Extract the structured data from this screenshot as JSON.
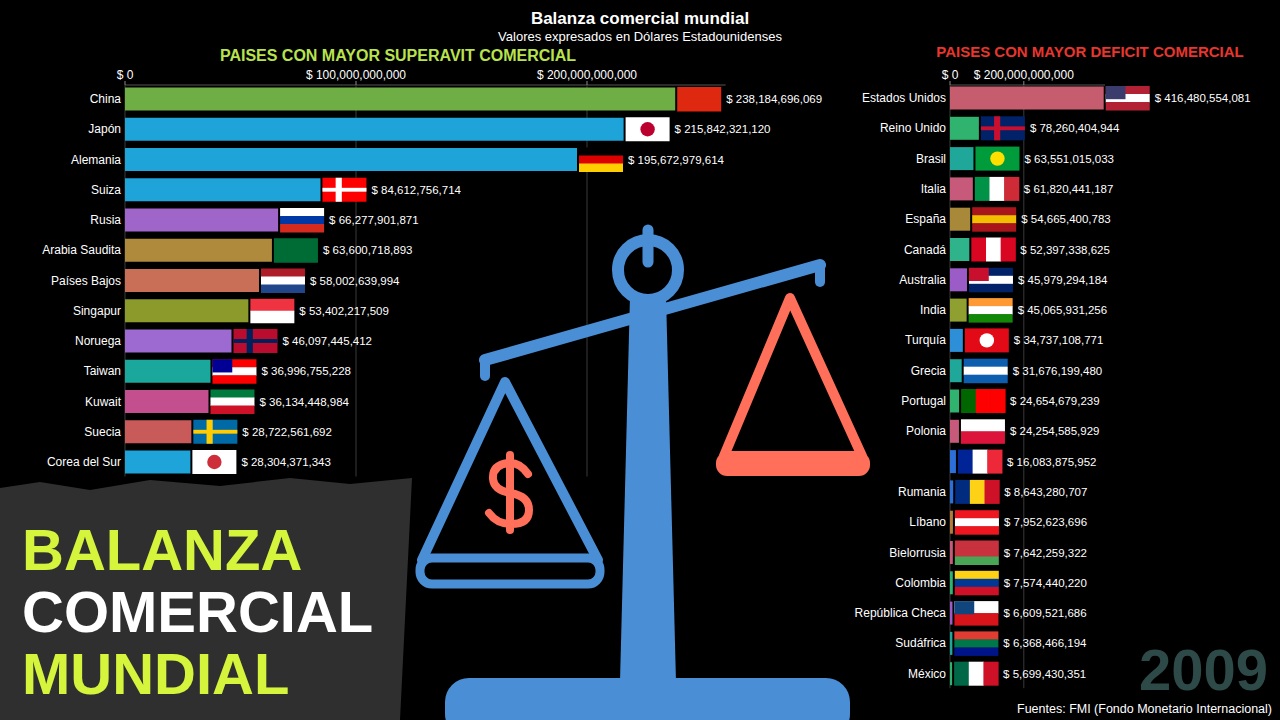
{
  "header": {
    "title": "Balanza comercial mundial",
    "subtitle": "Valores expresados en Dólares Estadounidenses",
    "banner": [
      "BALANZA",
      "COMERCIAL",
      "MUNDIAL"
    ],
    "year": "2009",
    "source": "Fuentes: FMI (Fondo Monetario Internacional)"
  },
  "chart_data": [
    {
      "type": "bar",
      "title": "PAISES CON MAYOR SUPERAVIT COMERCIAL",
      "orientation": "horizontal",
      "grid": true,
      "data_labels": true,
      "categories": [
        "China",
        "Japón",
        "Alemania",
        "Suiza",
        "Rusia",
        "Arabia Saudita",
        "Países Bajos",
        "Singapur",
        "Noruega",
        "Taiwan",
        "Kuwait",
        "Suecia",
        "Corea del Sur"
      ],
      "values": [
        238184696069,
        215842321120,
        195672979614,
        84612756714,
        66277901871,
        63600718893,
        58002639994,
        53402217509,
        46097445412,
        36996755228,
        36134448984,
        28722561692,
        28304371343
      ],
      "value_labels": [
        "$ 238,184,696,069",
        "$ 215,842,321,120",
        "$ 195,672,979,614",
        "$ 84,612,756,714",
        "$ 66,277,901,871",
        "$ 63,600,718,893",
        "$ 58,002,639,994",
        "$ 53,402,217,509",
        "$ 46,097,445,412",
        "$ 36,996,755,228",
        "$ 36,134,448,984",
        "$ 28,722,561,692",
        "$ 28,304,371,343"
      ],
      "colors": [
        "#6fae45",
        "#1ea4d8",
        "#1ea4d8",
        "#1ea4d8",
        "#a065c9",
        "#b08a3c",
        "#c96f58",
        "#8c9a2c",
        "#9c6ad0",
        "#19a89b",
        "#c44f8f",
        "#c95a5a",
        "#1ea4d8"
      ],
      "xlim": [
        0,
        260000000000
      ],
      "xticks": [
        {
          "value": 0,
          "label": "$ 0"
        },
        {
          "value": 100000000000,
          "label": "$ 100,000,000,000"
        },
        {
          "value": 200000000000,
          "label": "$ 200,000,000,000"
        }
      ]
    },
    {
      "type": "bar",
      "title": "PAISES CON MAYOR DEFICIT COMERCIAL",
      "orientation": "horizontal",
      "grid": true,
      "data_labels": true,
      "categories": [
        "Estados Unidos",
        "Reino Unido",
        "Brasil",
        "Italia",
        "España",
        "Canadá",
        "Australia",
        "India",
        "Turquía",
        "Grecia",
        "Portugal",
        "Polonia",
        null,
        "Rumania",
        "Líbano",
        "Bielorrusia",
        "Colombia",
        "República Checa",
        "Sudáfrica",
        "México"
      ],
      "values": [
        416480554081,
        78260404944,
        63551015033,
        61820441187,
        54665400783,
        52397338625,
        45979294184,
        45065931256,
        34737108771,
        31676199480,
        24654679239,
        24254585929,
        16083875952,
        8643280707,
        7952623696,
        7642259322,
        7574440220,
        6609521686,
        6368466194,
        5699430351
      ],
      "value_labels": [
        "$ 416,480,554,081",
        "$ 78,260,404,944",
        "$ 63,551,015,033",
        "$ 61,820,441,187",
        "$ 54,665,400,783",
        "$ 52,397,338,625",
        "$ 45,979,294,184",
        "$ 45,065,931,256",
        "$ 34,737,108,771",
        "$ 31,676,199,480",
        "$ 24,654,679,239",
        "$ 24,254,585,929",
        "$ 16,083,875,952",
        "$ 8,643,280,707",
        "$ 7,952,623,696",
        "$ 7,642,259,322",
        "$ 7,574,440,220",
        "$ 6,609,521,686",
        "$ 6,368,466,194",
        "$ 5,699,430,351"
      ],
      "colors": [
        "#c65d6e",
        "#2fb36e",
        "#1fa89a",
        "#c75a7a",
        "#a8893a",
        "#2fb38a",
        "#9c5cc7",
        "#8fa030",
        "#2c8fd8",
        "#1fa89a",
        "#2fb36e",
        "#c75a7a",
        "#2c6fd8",
        "#2c6fd8",
        "#b57a3a",
        "#c75a7a",
        "#2fb36e",
        "#9c5cc7",
        "#1fa89a",
        "#2fb36e"
      ],
      "xlim": [
        0,
        420000000000
      ],
      "xticks": [
        {
          "value": 0,
          "label": "$ 0"
        },
        {
          "value": 200000000000,
          "label": "$ 200,000,000,000"
        }
      ]
    }
  ]
}
